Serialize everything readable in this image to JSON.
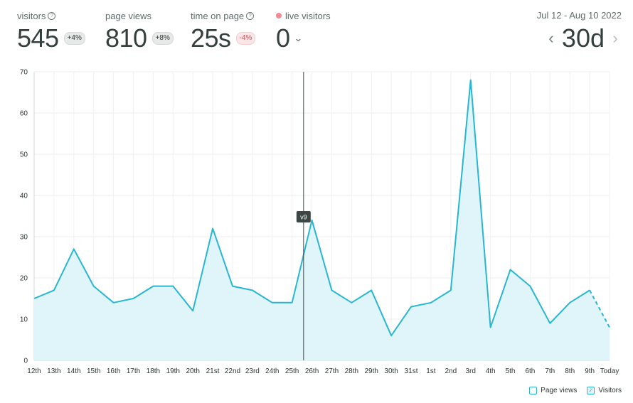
{
  "stats": {
    "visitors": {
      "label": "visitors",
      "value": "545",
      "change": "+4%"
    },
    "page_views": {
      "label": "page views",
      "value": "810",
      "change": "+8%"
    },
    "time_on_page": {
      "label": "time on page",
      "value": "25s",
      "change": "-4%"
    },
    "live_visitors": {
      "label": "live visitors",
      "value": "0"
    }
  },
  "range": {
    "dates": "Jul 12 - Aug 10 2022",
    "value": "30d",
    "prev_icon": "chevron-left-icon",
    "next_icon": "chevron-right-icon"
  },
  "colors": {
    "accent": "#29b6d1",
    "fill": "#e0f5fa",
    "negative": "#d94a55",
    "live": "#f08a96"
  },
  "chart_data": {
    "type": "area",
    "x": [
      "12th",
      "13th",
      "14th",
      "15th",
      "16th",
      "17th",
      "18th",
      "19th",
      "20th",
      "21st",
      "22nd",
      "23rd",
      "24th",
      "25th",
      "26th",
      "27th",
      "28th",
      "29th",
      "30th",
      "31st",
      "1st",
      "2nd",
      "3rd",
      "4th",
      "5th",
      "6th",
      "7th",
      "8th",
      "9th",
      "Today"
    ],
    "series": [
      {
        "name": "Visitors",
        "values": [
          15,
          17,
          27,
          18,
          14,
          15,
          18,
          18,
          12,
          32,
          18,
          17,
          14,
          14,
          34,
          17,
          14,
          17,
          6,
          13,
          14,
          17,
          68,
          8,
          22,
          18,
          9,
          14,
          17,
          8
        ]
      }
    ],
    "ylim": [
      0,
      70
    ],
    "yticks": [
      0,
      10,
      20,
      30,
      40,
      50,
      60,
      70
    ],
    "grid": true,
    "last_segment_dashed": true,
    "annotation": {
      "label": "v9",
      "after_x": "25th"
    },
    "legend": [
      {
        "label": "Page views",
        "checked": false
      },
      {
        "label": "Visitors",
        "checked": true
      }
    ],
    "legend_placement": "bottom-right"
  }
}
